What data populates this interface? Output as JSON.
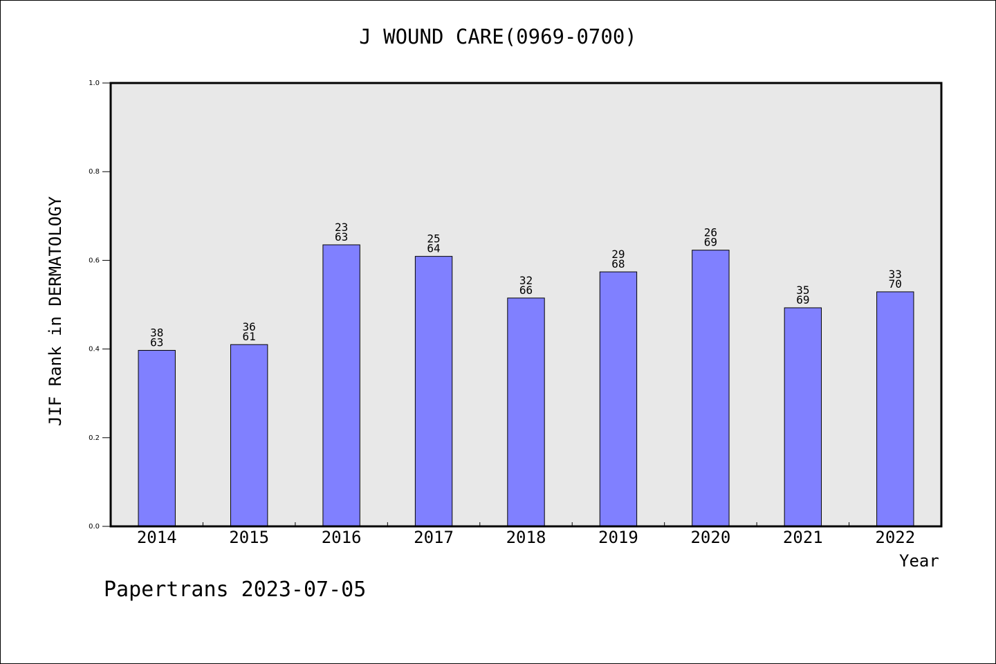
{
  "chart_data": {
    "type": "bar",
    "title": "J WOUND CARE(0969-0700)",
    "xlabel": "Year",
    "ylabel": "JIF Rank in DERMATOLOGY",
    "categories": [
      "2014",
      "2015",
      "2016",
      "2017",
      "2018",
      "2019",
      "2020",
      "2021",
      "2022"
    ],
    "values": [
      0.397,
      0.41,
      0.635,
      0.609,
      0.515,
      0.574,
      0.623,
      0.493,
      0.529
    ],
    "ranks": [
      "38",
      "36",
      "23",
      "25",
      "32",
      "29",
      "26",
      "35",
      "33"
    ],
    "totals": [
      "63",
      "61",
      "63",
      "64",
      "66",
      "68",
      "69",
      "69",
      "70"
    ],
    "yticks": [
      "0.0",
      "0.2",
      "0.4",
      "0.6",
      "0.8",
      "1.0"
    ],
    "ylim": [
      0,
      1.0
    ],
    "grid": false,
    "bar_color": "#8080ff",
    "plot_background": "#e8e8e8"
  },
  "footer": {
    "watermark": "Papertrans 2023-07-05"
  }
}
